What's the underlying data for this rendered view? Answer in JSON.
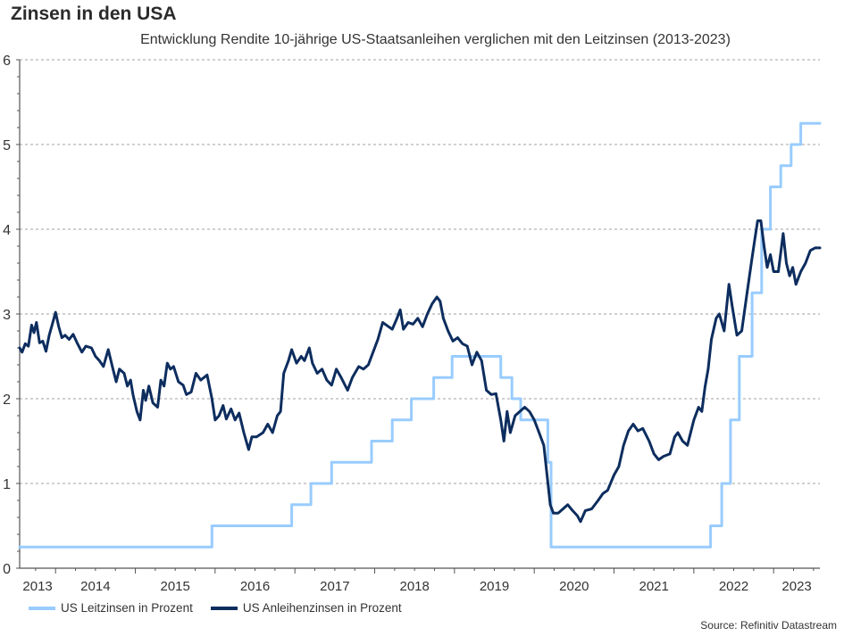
{
  "header": {
    "title": "Zinsen in den USA",
    "subtitle": "Entwicklung Rendite 10-jährige US-Staatsanleihen verglichen mit den Leitzinsen (2013-2023)"
  },
  "source": "Source: Refinitiv Datastream",
  "colors": {
    "leitzins": "#99ccff",
    "anleihen": "#0d2d5e",
    "grid": "#a0a0a0",
    "axis": "#555555"
  },
  "chart_data": {
    "type": "line",
    "title": "Zinsen in den USA",
    "subtitle": "Entwicklung Rendite 10-jährige US-Staatsanleihen verglichen mit den Leitzinsen (2013-2023)",
    "xlabel": "",
    "ylabel": "",
    "xlim": [
      2013.55,
      2023.58
    ],
    "ylim": [
      0,
      6
    ],
    "yticks": [
      "0",
      "1",
      "2",
      "3",
      "4",
      "5",
      "6"
    ],
    "xticks": [
      "2013",
      "2014",
      "2015",
      "2016",
      "2017",
      "2018",
      "2019",
      "2020",
      "2021",
      "2022",
      "2023"
    ],
    "grid": "horizontal dashed",
    "legend_position": "bottom-left",
    "series": [
      {
        "name": "US Leitzinsen in Prozent",
        "style": "step",
        "points": [
          [
            2013.55,
            0.25
          ],
          [
            2015.96,
            0.25
          ],
          [
            2015.96,
            0.5
          ],
          [
            2016.96,
            0.5
          ],
          [
            2016.96,
            0.75
          ],
          [
            2017.2,
            0.75
          ],
          [
            2017.2,
            1.0
          ],
          [
            2017.46,
            1.0
          ],
          [
            2017.46,
            1.25
          ],
          [
            2017.96,
            1.25
          ],
          [
            2017.96,
            1.5
          ],
          [
            2018.22,
            1.5
          ],
          [
            2018.22,
            1.75
          ],
          [
            2018.46,
            1.75
          ],
          [
            2018.46,
            2.0
          ],
          [
            2018.74,
            2.0
          ],
          [
            2018.74,
            2.25
          ],
          [
            2018.97,
            2.25
          ],
          [
            2018.97,
            2.5
          ],
          [
            2019.58,
            2.5
          ],
          [
            2019.58,
            2.25
          ],
          [
            2019.72,
            2.25
          ],
          [
            2019.72,
            2.0
          ],
          [
            2019.83,
            2.0
          ],
          [
            2019.83,
            1.75
          ],
          [
            2020.17,
            1.75
          ],
          [
            2020.17,
            1.25
          ],
          [
            2020.21,
            1.25
          ],
          [
            2020.21,
            0.25
          ],
          [
            2022.21,
            0.25
          ],
          [
            2022.21,
            0.5
          ],
          [
            2022.35,
            0.5
          ],
          [
            2022.35,
            1.0
          ],
          [
            2022.46,
            1.0
          ],
          [
            2022.46,
            1.75
          ],
          [
            2022.57,
            1.75
          ],
          [
            2022.57,
            2.5
          ],
          [
            2022.73,
            2.5
          ],
          [
            2022.73,
            3.25
          ],
          [
            2022.85,
            3.25
          ],
          [
            2022.85,
            4.0
          ],
          [
            2022.96,
            4.0
          ],
          [
            2022.96,
            4.5
          ],
          [
            2023.09,
            4.5
          ],
          [
            2023.09,
            4.75
          ],
          [
            2023.22,
            4.75
          ],
          [
            2023.22,
            5.0
          ],
          [
            2023.34,
            5.0
          ],
          [
            2023.34,
            5.25
          ],
          [
            2023.58,
            5.25
          ]
        ]
      },
      {
        "name": "US Anleihenzinsen in Prozent",
        "style": "line",
        "points": [
          [
            2013.55,
            2.6
          ],
          [
            2013.58,
            2.55
          ],
          [
            2013.62,
            2.65
          ],
          [
            2013.66,
            2.62
          ],
          [
            2013.7,
            2.87
          ],
          [
            2013.73,
            2.78
          ],
          [
            2013.76,
            2.9
          ],
          [
            2013.8,
            2.66
          ],
          [
            2013.84,
            2.68
          ],
          [
            2013.88,
            2.56
          ],
          [
            2013.92,
            2.75
          ],
          [
            2013.96,
            2.88
          ],
          [
            2014.0,
            3.02
          ],
          [
            2014.04,
            2.85
          ],
          [
            2014.08,
            2.72
          ],
          [
            2014.12,
            2.75
          ],
          [
            2014.17,
            2.7
          ],
          [
            2014.22,
            2.76
          ],
          [
            2014.27,
            2.66
          ],
          [
            2014.33,
            2.55
          ],
          [
            2014.38,
            2.62
          ],
          [
            2014.45,
            2.6
          ],
          [
            2014.5,
            2.5
          ],
          [
            2014.55,
            2.45
          ],
          [
            2014.6,
            2.38
          ],
          [
            2014.66,
            2.58
          ],
          [
            2014.72,
            2.35
          ],
          [
            2014.76,
            2.2
          ],
          [
            2014.8,
            2.35
          ],
          [
            2014.86,
            2.3
          ],
          [
            2014.9,
            2.15
          ],
          [
            2014.94,
            2.22
          ],
          [
            2014.97,
            2.05
          ],
          [
            2015.02,
            1.85
          ],
          [
            2015.06,
            1.75
          ],
          [
            2015.1,
            2.1
          ],
          [
            2015.13,
            1.98
          ],
          [
            2015.17,
            2.15
          ],
          [
            2015.22,
            1.95
          ],
          [
            2015.28,
            1.9
          ],
          [
            2015.32,
            2.22
          ],
          [
            2015.36,
            2.15
          ],
          [
            2015.4,
            2.42
          ],
          [
            2015.44,
            2.35
          ],
          [
            2015.48,
            2.38
          ],
          [
            2015.54,
            2.2
          ],
          [
            2015.6,
            2.16
          ],
          [
            2015.64,
            2.05
          ],
          [
            2015.7,
            2.08
          ],
          [
            2015.76,
            2.3
          ],
          [
            2015.82,
            2.22
          ],
          [
            2015.9,
            2.28
          ],
          [
            2015.96,
            2.0
          ],
          [
            2016.0,
            1.75
          ],
          [
            2016.05,
            1.8
          ],
          [
            2016.1,
            1.92
          ],
          [
            2016.14,
            1.76
          ],
          [
            2016.2,
            1.88
          ],
          [
            2016.25,
            1.75
          ],
          [
            2016.3,
            1.83
          ],
          [
            2016.36,
            1.6
          ],
          [
            2016.42,
            1.4
          ],
          [
            2016.46,
            1.55
          ],
          [
            2016.52,
            1.55
          ],
          [
            2016.6,
            1.6
          ],
          [
            2016.66,
            1.7
          ],
          [
            2016.72,
            1.6
          ],
          [
            2016.78,
            1.8
          ],
          [
            2016.82,
            1.85
          ],
          [
            2016.86,
            2.3
          ],
          [
            2016.92,
            2.45
          ],
          [
            2016.96,
            2.58
          ],
          [
            2017.02,
            2.42
          ],
          [
            2017.08,
            2.5
          ],
          [
            2017.12,
            2.45
          ],
          [
            2017.18,
            2.6
          ],
          [
            2017.22,
            2.42
          ],
          [
            2017.28,
            2.3
          ],
          [
            2017.34,
            2.35
          ],
          [
            2017.4,
            2.22
          ],
          [
            2017.46,
            2.16
          ],
          [
            2017.52,
            2.35
          ],
          [
            2017.58,
            2.25
          ],
          [
            2017.66,
            2.1
          ],
          [
            2017.72,
            2.25
          ],
          [
            2017.8,
            2.38
          ],
          [
            2017.86,
            2.35
          ],
          [
            2017.92,
            2.4
          ],
          [
            2017.98,
            2.55
          ],
          [
            2018.04,
            2.7
          ],
          [
            2018.1,
            2.9
          ],
          [
            2018.16,
            2.86
          ],
          [
            2018.22,
            2.82
          ],
          [
            2018.28,
            2.95
          ],
          [
            2018.32,
            3.05
          ],
          [
            2018.36,
            2.82
          ],
          [
            2018.42,
            2.9
          ],
          [
            2018.48,
            2.88
          ],
          [
            2018.54,
            2.95
          ],
          [
            2018.6,
            2.85
          ],
          [
            2018.66,
            3.0
          ],
          [
            2018.72,
            3.12
          ],
          [
            2018.78,
            3.2
          ],
          [
            2018.82,
            3.15
          ],
          [
            2018.86,
            2.95
          ],
          [
            2018.92,
            2.8
          ],
          [
            2018.98,
            2.68
          ],
          [
            2019.04,
            2.72
          ],
          [
            2019.1,
            2.65
          ],
          [
            2019.16,
            2.62
          ],
          [
            2019.22,
            2.4
          ],
          [
            2019.28,
            2.55
          ],
          [
            2019.34,
            2.45
          ],
          [
            2019.4,
            2.1
          ],
          [
            2019.46,
            2.05
          ],
          [
            2019.52,
            2.06
          ],
          [
            2019.58,
            1.75
          ],
          [
            2019.62,
            1.5
          ],
          [
            2019.66,
            1.85
          ],
          [
            2019.7,
            1.6
          ],
          [
            2019.76,
            1.8
          ],
          [
            2019.82,
            1.85
          ],
          [
            2019.88,
            1.9
          ],
          [
            2019.94,
            1.85
          ],
          [
            2020.0,
            1.75
          ],
          [
            2020.06,
            1.6
          ],
          [
            2020.12,
            1.45
          ],
          [
            2020.16,
            1.1
          ],
          [
            2020.2,
            0.75
          ],
          [
            2020.24,
            0.65
          ],
          [
            2020.3,
            0.65
          ],
          [
            2020.36,
            0.7
          ],
          [
            2020.42,
            0.75
          ],
          [
            2020.48,
            0.68
          ],
          [
            2020.54,
            0.62
          ],
          [
            2020.58,
            0.55
          ],
          [
            2020.64,
            0.68
          ],
          [
            2020.72,
            0.7
          ],
          [
            2020.8,
            0.8
          ],
          [
            2020.86,
            0.88
          ],
          [
            2020.92,
            0.92
          ],
          [
            2021.0,
            1.1
          ],
          [
            2021.06,
            1.2
          ],
          [
            2021.12,
            1.45
          ],
          [
            2021.18,
            1.62
          ],
          [
            2021.24,
            1.7
          ],
          [
            2021.3,
            1.62
          ],
          [
            2021.36,
            1.65
          ],
          [
            2021.44,
            1.5
          ],
          [
            2021.5,
            1.35
          ],
          [
            2021.56,
            1.28
          ],
          [
            2021.62,
            1.32
          ],
          [
            2021.7,
            1.35
          ],
          [
            2021.76,
            1.55
          ],
          [
            2021.8,
            1.6
          ],
          [
            2021.86,
            1.5
          ],
          [
            2021.92,
            1.45
          ],
          [
            2022.0,
            1.75
          ],
          [
            2022.06,
            1.9
          ],
          [
            2022.1,
            1.85
          ],
          [
            2022.14,
            2.14
          ],
          [
            2022.18,
            2.35
          ],
          [
            2022.22,
            2.7
          ],
          [
            2022.28,
            2.95
          ],
          [
            2022.32,
            3.0
          ],
          [
            2022.38,
            2.8
          ],
          [
            2022.44,
            3.35
          ],
          [
            2022.48,
            3.1
          ],
          [
            2022.54,
            2.75
          ],
          [
            2022.6,
            2.8
          ],
          [
            2022.66,
            3.2
          ],
          [
            2022.72,
            3.6
          ],
          [
            2022.76,
            3.85
          ],
          [
            2022.8,
            4.1
          ],
          [
            2022.84,
            4.1
          ],
          [
            2022.88,
            3.8
          ],
          [
            2022.92,
            3.55
          ],
          [
            2022.96,
            3.7
          ],
          [
            2023.0,
            3.5
          ],
          [
            2023.06,
            3.5
          ],
          [
            2023.12,
            3.95
          ],
          [
            2023.16,
            3.6
          ],
          [
            2023.2,
            3.45
          ],
          [
            2023.24,
            3.55
          ],
          [
            2023.28,
            3.35
          ],
          [
            2023.34,
            3.5
          ],
          [
            2023.4,
            3.6
          ],
          [
            2023.46,
            3.75
          ],
          [
            2023.52,
            3.78
          ],
          [
            2023.58,
            3.78
          ]
        ]
      }
    ]
  }
}
